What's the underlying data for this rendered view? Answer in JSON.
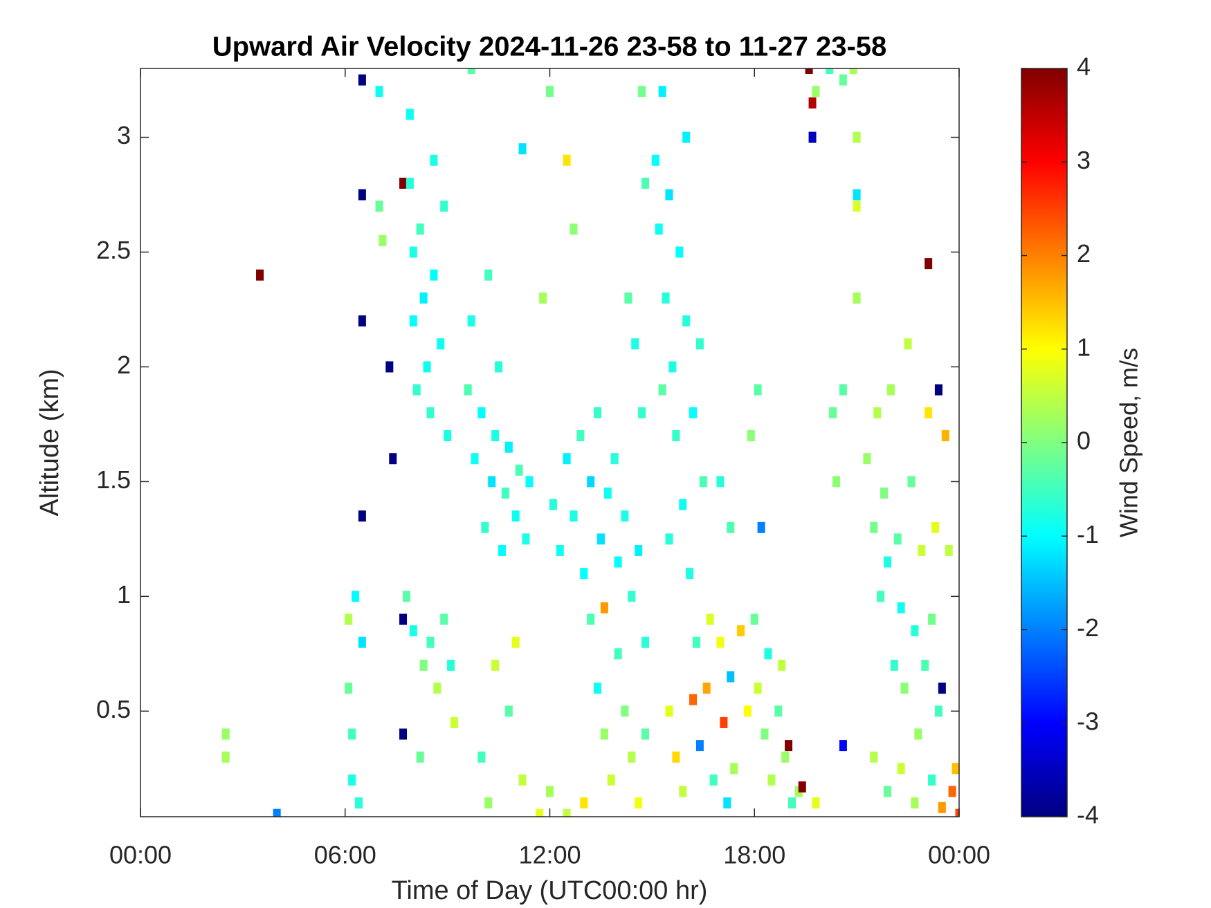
{
  "chart_data": {
    "type": "heatmap",
    "title": "Upward Air Velocity 2024-11-26 23-58 to 11-27 23-58",
    "x_label": "Time of Day (UTC00:00 hr)",
    "y_label": "Altitude (km)",
    "colorbar_label": "Wind Speed, m/s",
    "xlim": [
      0,
      24
    ],
    "xticks": [
      {
        "value": 0,
        "label": "00:00"
      },
      {
        "value": 6,
        "label": "06:00"
      },
      {
        "value": 12,
        "label": "12:00"
      },
      {
        "value": 18,
        "label": "18:00"
      },
      {
        "value": 24,
        "label": "00:00"
      }
    ],
    "ylim": [
      0.04,
      3.3
    ],
    "yticks": [
      0.5,
      1,
      1.5,
      2,
      2.5,
      3
    ],
    "clim": [
      -4,
      4
    ],
    "cticks": [
      -4,
      -3,
      -2,
      -1,
      0,
      1,
      2,
      3,
      4
    ],
    "colormap": "jet",
    "x": [
      2.5,
      2.5,
      3.5,
      4.0,
      6.1,
      6.1,
      6.2,
      6.2,
      6.3,
      6.4,
      6.5,
      6.5,
      6.5,
      6.5,
      6.5,
      7.0,
      7.1,
      7.0,
      7.3,
      7.4,
      7.7,
      7.7,
      7.8,
      7.7,
      7.9,
      7.9,
      8.0,
      8.0,
      8.1,
      8.2,
      8.3,
      8.4,
      8.5,
      8.6,
      8.6,
      8.8,
      8.9,
      9.0,
      8.0,
      8.3,
      8.5,
      8.7,
      8.9,
      9.1,
      9.2,
      8.2,
      9.6,
      9.7,
      9.8,
      10.0,
      10.1,
      10.2,
      10.3,
      10.4,
      10.5,
      10.6,
      10.7,
      10.8,
      11.0,
      11.1,
      11.3,
      11.4,
      10.0,
      10.2,
      10.4,
      10.8,
      11.2,
      11.0,
      9.7,
      11.2,
      12.0,
      11.8,
      12.5,
      12.7,
      12.1,
      12.3,
      12.5,
      12.7,
      12.9,
      13.0,
      13.2,
      13.4,
      13.5,
      13.7,
      13.9,
      14.0,
      14.2,
      14.4,
      14.6,
      13.2,
      13.4,
      13.6,
      13.8,
      14.0,
      14.2,
      14.4,
      14.6,
      14.8,
      13.0,
      12.5,
      12.0,
      11.7,
      13.6,
      14.8,
      14.5,
      14.7,
      14.3,
      14.7,
      14.8,
      15.1,
      15.2,
      15.3,
      15.4,
      15.5,
      15.6,
      15.7,
      15.8,
      15.9,
      16.0,
      16.1,
      16.2,
      16.3,
      16.4,
      16.5,
      15.5,
      15.3,
      16.0,
      15.5,
      15.7,
      15.9,
      16.2,
      16.4,
      16.6,
      16.8,
      17.0,
      17.1,
      17.3,
      17.4,
      17.6,
      17.8,
      17.2,
      16.7,
      18.0,
      17.0,
      17.3,
      17.9,
      18.1,
      18.2,
      18.1,
      18.3,
      18.4,
      18.5,
      18.7,
      18.9,
      19.0,
      19.1,
      19.3,
      19.4,
      18.8,
      19.8,
      19.6,
      19.7,
      19.8,
      19.7,
      20.2,
      20.6,
      20.9,
      20.3,
      20.4,
      20.6,
      21.0,
      21.0,
      21.0,
      20.6,
      21.0,
      21.3,
      21.5,
      21.6,
      21.7,
      21.8,
      21.9,
      22.0,
      22.1,
      22.2,
      22.3,
      22.4,
      22.5,
      22.6,
      22.7,
      22.8,
      22.9,
      23.0,
      23.1,
      23.2,
      23.3,
      23.4,
      23.6,
      21.5,
      21.9,
      22.3,
      22.7,
      23.2,
      23.5,
      23.8,
      24.0,
      23.9,
      23.5,
      23.4,
      23.1,
      23.7
    ],
    "y": [
      0.3,
      0.4,
      2.4,
      0.05,
      0.9,
      0.6,
      0.4,
      0.2,
      1.0,
      0.1,
      0.8,
      2.2,
      2.75,
      1.35,
      3.25,
      2.7,
      2.55,
      3.2,
      2.0,
      1.6,
      0.4,
      0.9,
      1.0,
      2.8,
      3.1,
      2.8,
      2.5,
      2.2,
      1.9,
      2.6,
      2.3,
      2.0,
      1.8,
      2.9,
      2.4,
      2.1,
      2.7,
      1.7,
      0.85,
      0.7,
      0.8,
      0.6,
      0.9,
      0.7,
      0.45,
      0.3,
      1.9,
      2.2,
      1.6,
      1.8,
      1.3,
      2.4,
      1.5,
      1.7,
      2.0,
      1.2,
      1.45,
      1.65,
      1.35,
      1.55,
      1.25,
      1.5,
      0.3,
      0.1,
      0.7,
      0.5,
      0.2,
      0.8,
      3.3,
      2.95,
      3.2,
      2.3,
      2.9,
      2.6,
      1.4,
      1.2,
      1.6,
      1.35,
      1.7,
      1.1,
      1.5,
      1.8,
      1.25,
      1.45,
      1.6,
      1.15,
      1.35,
      1.0,
      1.2,
      0.9,
      0.6,
      0.4,
      0.2,
      0.75,
      0.5,
      0.3,
      0.1,
      0.8,
      0.1,
      0.05,
      0.15,
      0.05,
      0.95,
      0.4,
      2.1,
      1.8,
      2.3,
      3.2,
      2.8,
      2.9,
      2.6,
      3.2,
      2.3,
      2.75,
      2.0,
      1.7,
      2.5,
      1.4,
      2.2,
      1.1,
      1.8,
      0.8,
      2.1,
      1.5,
      1.25,
      1.9,
      3.0,
      0.5,
      0.3,
      0.15,
      0.55,
      0.35,
      0.6,
      0.2,
      0.8,
      0.45,
      0.65,
      0.25,
      0.85,
      0.5,
      0.1,
      0.9,
      0.9,
      1.5,
      1.3,
      1.7,
      1.9,
      1.3,
      0.6,
      0.4,
      0.75,
      0.2,
      0.5,
      0.3,
      0.35,
      0.1,
      0.15,
      0.17,
      0.7,
      0.1,
      3.3,
      3.15,
      3.2,
      3.0,
      3.3,
      3.25,
      3.3,
      1.8,
      1.5,
      1.9,
      3.0,
      2.7,
      2.3,
      0.35,
      2.75,
      1.6,
      1.3,
      1.8,
      1.0,
      1.45,
      1.15,
      1.9,
      0.7,
      1.25,
      0.95,
      0.6,
      2.1,
      1.5,
      0.85,
      0.4,
      1.2,
      0.7,
      1.8,
      0.9,
      1.3,
      0.5,
      1.7,
      0.3,
      0.15,
      0.25,
      0.1,
      0.2,
      0.08,
      0.15,
      0.05,
      0.25,
      0.6,
      1.9,
      2.45,
      1.2
    ],
    "values": [
      0.3,
      0.2,
      4,
      -2,
      0.4,
      -0.2,
      -0.5,
      -0.8,
      -1,
      -0.7,
      -1.2,
      -4,
      -4,
      -4,
      -4,
      -0.2,
      0.2,
      -0.9,
      -4,
      -4,
      -4,
      -4,
      -0.3,
      4,
      -0.9,
      -0.7,
      -0.8,
      -1,
      -0.6,
      -0.5,
      -1.1,
      -0.9,
      -0.6,
      -0.8,
      -1,
      -0.9,
      -0.6,
      -0.8,
      -0.8,
      0,
      -0.5,
      0.4,
      -0.3,
      -0.7,
      0.6,
      -0.2,
      -0.4,
      -0.8,
      -0.9,
      -1,
      -0.6,
      -0.5,
      -1.2,
      -0.8,
      -0.7,
      -1,
      -0.5,
      -1.1,
      -0.9,
      -0.4,
      -0.8,
      -1,
      -0.5,
      0.2,
      0.6,
      -0.3,
      0.5,
      0.8,
      -0.3,
      -1.2,
      -0.1,
      0.3,
      1.2,
      0.1,
      -0.7,
      -0.9,
      -1.1,
      -0.8,
      -0.5,
      -1,
      -1.3,
      -0.6,
      -1.2,
      -0.9,
      -0.7,
      -1,
      -0.8,
      -0.6,
      -1.1,
      -0.4,
      -0.9,
      0.2,
      0.6,
      -0.5,
      0,
      0.4,
      0.9,
      -0.7,
      1.2,
      0.5,
      0.3,
      0.8,
      1.8,
      -0.3,
      -0.8,
      -0.6,
      -0.3,
      -0.1,
      -0.4,
      -1,
      -0.9,
      -1.1,
      -0.7,
      -1.2,
      -0.8,
      -0.6,
      -1,
      -0.9,
      -0.7,
      -0.8,
      -1,
      -0.5,
      -0.6,
      -0.4,
      -0.7,
      -0.3,
      -1.1,
      0.8,
      1.3,
      0.5,
      2.2,
      -2,
      1.7,
      -0.5,
      0.9,
      2.5,
      -1.5,
      0.3,
      1.4,
      1.0,
      -1.2,
      0.7,
      -0.2,
      -0.7,
      -0.4,
      0.1,
      -0.3,
      -2,
      0.6,
      0,
      -0.8,
      0.4,
      -0.3,
      0.2,
      4,
      -0.5,
      0.3,
      4,
      0.5,
      0.8,
      4,
      3.6,
      0.2,
      -3.5,
      -0.5,
      -0.2,
      0.3,
      -0.2,
      0.1,
      -0.3,
      0.4,
      0.7,
      0.3,
      -3,
      -1.2,
      0.2,
      -0.1,
      0.4,
      -0.5,
      0,
      -0.8,
      0.3,
      -0.6,
      -0.3,
      -0.9,
      0.1,
      0.5,
      -0.2,
      -0.7,
      0.2,
      0.6,
      -0.4,
      1.2,
      -0.1,
      0.8,
      -0.5,
      1.6,
      0.4,
      -0.2,
      0.6,
      0.3,
      -0.6,
      1.8,
      2.2,
      2.5,
      1.5,
      -4,
      -4,
      4,
      0.5
    ]
  }
}
